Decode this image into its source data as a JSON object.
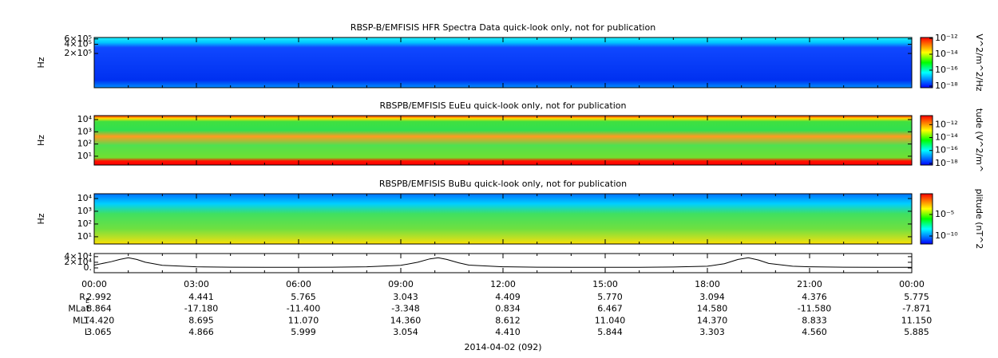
{
  "chart_data": [
    {
      "type": "spectrogram",
      "title": "RBSP-B/EMFISIS  HFR Spectra Data quick-look only, not for publication",
      "ylabel": "Hz",
      "ylog": true,
      "ylim": [
        15000,
        670000
      ],
      "yticks": [
        {
          "value": 600000,
          "label": "6×10⁵"
        },
        {
          "value": 400000,
          "label": "4×10⁵"
        },
        {
          "value": 200000,
          "label": "2×10⁵"
        }
      ],
      "colorbar_label": "V^2/m^2/Hz",
      "clim": [
        6.3e-19,
        1.26e-12
      ],
      "cticks": [
        {
          "value": 1e-12,
          "label": "10⁻¹²"
        },
        {
          "value": 1e-14,
          "label": "10⁻¹⁴"
        },
        {
          "value": 1e-16,
          "label": "10⁻¹⁶"
        },
        {
          "value": 1e-18,
          "label": "10⁻¹⁸"
        }
      ]
    },
    {
      "type": "spectrogram",
      "title": "RBSPB/EMFISIS  EuEu quick-look only, not for publication",
      "ylabel": "Hz",
      "ylog": true,
      "ylim": [
        1.9,
        21000
      ],
      "yticks": [
        {
          "value": 10000,
          "label": "10⁴"
        },
        {
          "value": 1000,
          "label": "10³"
        },
        {
          "value": 100,
          "label": "10²"
        },
        {
          "value": 10,
          "label": "10¹"
        }
      ],
      "colorbar_label": "tude (V^2/m^",
      "clim": [
        5.6e-19,
        2.5e-11
      ],
      "cticks": [
        {
          "value": 1e-12,
          "label": "10⁻¹²"
        },
        {
          "value": 1e-14,
          "label": "10⁻¹⁴"
        },
        {
          "value": 1e-16,
          "label": "10⁻¹⁶"
        },
        {
          "value": 1e-18,
          "label": "10⁻¹⁸"
        }
      ]
    },
    {
      "type": "spectrogram",
      "title": "RBSPB/EMFISIS  BuBu quick-look only, not for publication",
      "ylabel": "Hz",
      "ylog": true,
      "ylim": [
        2.7,
        23700
      ],
      "yticks": [
        {
          "value": 10000,
          "label": "10⁴"
        },
        {
          "value": 1000,
          "label": "10³"
        },
        {
          "value": 100,
          "label": "10²"
        },
        {
          "value": 10,
          "label": "10¹"
        }
      ],
      "colorbar_label": "plitude (nT^2",
      "clim": [
        1.4e-12,
        0.65
      ],
      "cticks": [
        {
          "value": 1e-05,
          "label": "10⁻⁵"
        },
        {
          "value": 1e-10,
          "label": "10⁻¹⁰"
        }
      ]
    },
    {
      "type": "line",
      "ylim": [
        -17000,
        51000
      ],
      "yticks": [
        {
          "value": 40000,
          "label": "4×10⁴"
        },
        {
          "value": 20000,
          "label": "2×10⁴"
        },
        {
          "value": 0,
          "label": "0."
        }
      ],
      "xlim": [
        0,
        24
      ],
      "xticks": [
        {
          "value": 0,
          "label": "00:00"
        },
        {
          "value": 3,
          "label": "03:00"
        },
        {
          "value": 6,
          "label": "06:00"
        },
        {
          "value": 9,
          "label": "09:00"
        },
        {
          "value": 12,
          "label": "12:00"
        },
        {
          "value": 15,
          "label": "15:00"
        },
        {
          "value": 18,
          "label": "18:00"
        },
        {
          "value": 21,
          "label": "21:00"
        },
        {
          "value": 24,
          "label": "00:00"
        }
      ],
      "series": [
        {
          "color": "#000000",
          "x": [
            0,
            0.5,
            0.75,
            1,
            1.25,
            1.5,
            2,
            3,
            4,
            5,
            6,
            7,
            8,
            9,
            9.5,
            9.85,
            10.1,
            10.35,
            10.7,
            11,
            12,
            13,
            14,
            15,
            16,
            17,
            18,
            18.5,
            18.9,
            19.2,
            19.5,
            19.8,
            20.5,
            21,
            22,
            23,
            24
          ],
          "values": [
            10000,
            22000,
            30000,
            36000,
            30000,
            20000,
            9000,
            4000,
            2500,
            2000,
            2000,
            2500,
            4000,
            9000,
            20000,
            32000,
            36000,
            30000,
            18000,
            10000,
            4000,
            2500,
            2000,
            2000,
            2200,
            3000,
            6000,
            15000,
            30000,
            36000,
            28000,
            16000,
            6000,
            4000,
            2500,
            2000,
            2000
          ]
        }
      ]
    }
  ],
  "ephemeris": {
    "rows": [
      {
        "label": "R",
        "sub": "E",
        "values": [
          "2.992",
          "4.441",
          "5.765",
          "3.043",
          "4.409",
          "5.770",
          "3.094",
          "4.376",
          "5.775"
        ]
      },
      {
        "label": "MLat",
        "values": [
          "8.864",
          "-17.180",
          "-11.400",
          "-3.348",
          "0.834",
          "6.467",
          "14.580",
          "-11.580",
          "-7.871"
        ]
      },
      {
        "label": "MLT",
        "values": [
          "14.420",
          "8.695",
          "11.070",
          "14.360",
          "8.612",
          "11.040",
          "14.370",
          "8.833",
          "11.150"
        ]
      },
      {
        "label": "L",
        "values": [
          "3.065",
          "4.866",
          "5.999",
          "3.054",
          "4.410",
          "5.844",
          "3.303",
          "4.560",
          "5.885"
        ]
      }
    ],
    "date": "2014-04-02 (092)"
  }
}
